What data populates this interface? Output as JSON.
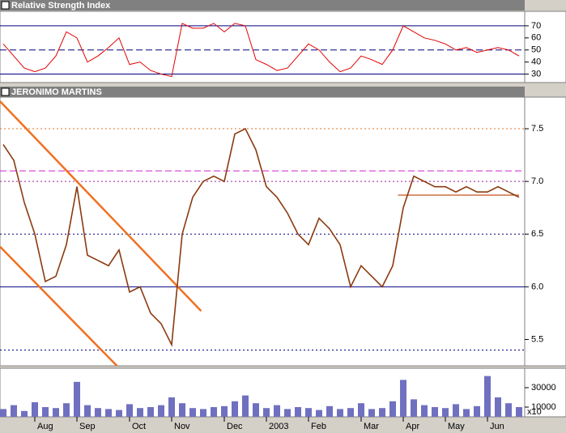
{
  "chart_data": [
    {
      "type": "line",
      "title": "Relative Strength Index",
      "color": "#e00000",
      "values": [
        55,
        45,
        35,
        32,
        35,
        45,
        65,
        60,
        40,
        45,
        52,
        60,
        38,
        40,
        33,
        30,
        28,
        72,
        68,
        68,
        72,
        65,
        72,
        70,
        42,
        38,
        33,
        35,
        45,
        55,
        50,
        40,
        32,
        35,
        45,
        42,
        38,
        50,
        70,
        65,
        60,
        58,
        55,
        50,
        52,
        48,
        50,
        52,
        50,
        45
      ],
      "ylim": [
        23,
        82
      ],
      "yticks": [
        30,
        40,
        50,
        60,
        70
      ],
      "reference_lines": [
        {
          "value": 70,
          "style": "solid",
          "color": "#000080"
        },
        {
          "value": 50,
          "style": "dashed",
          "color": "#000080"
        },
        {
          "value": 30,
          "style": "solid",
          "color": "#000080"
        }
      ]
    },
    {
      "type": "line",
      "title": "JERONIMO MARTINS",
      "color": "#8b3a0f",
      "values": [
        7.35,
        7.2,
        6.8,
        6.5,
        6.05,
        6.1,
        6.4,
        6.95,
        6.3,
        6.25,
        6.2,
        6.35,
        5.95,
        6.0,
        5.75,
        5.65,
        5.45,
        6.5,
        6.85,
        7.0,
        7.05,
        7.0,
        7.45,
        7.5,
        7.3,
        6.95,
        6.85,
        6.7,
        6.5,
        6.4,
        6.65,
        6.55,
        6.4,
        6.0,
        6.2,
        6.1,
        6.0,
        6.2,
        6.75,
        7.05,
        7.0,
        6.95,
        6.95,
        6.9,
        6.95,
        6.9,
        6.9,
        6.95,
        6.9,
        6.85
      ],
      "ylim": [
        5.25,
        7.8
      ],
      "yticks": [
        5.5,
        {
          "value": 6,
          "label": "6.0"
        },
        6.5,
        {
          "value": 7,
          "label": "7.0"
        },
        7.5
      ],
      "reference_lines": [
        {
          "value": 7.5,
          "style": "dotted",
          "color": "#e07020"
        },
        {
          "value": 7.1,
          "style": "dashed",
          "color": "#d020d0"
        },
        {
          "value": 7,
          "style": "dotted",
          "color": "#a020a0"
        },
        {
          "value": 6.5,
          "style": "dotted",
          "color": "#000080"
        },
        {
          "value": 6,
          "style": "solid",
          "color": "#000080"
        },
        {
          "value": 5.4,
          "style": "dotted",
          "color": "#000080"
        }
      ],
      "trendlines": [
        {
          "color": "#f07020",
          "points": [
            [
              -0.3,
              7.76
            ],
            [
              18.8,
              5.77
            ]
          ]
        },
        {
          "color": "#f07020",
          "points": [
            [
              -0.3,
              6.38
            ],
            [
              10.8,
              5.25
            ]
          ]
        },
        {
          "color": "#c04000",
          "points": [
            [
              37.5,
              6.87
            ],
            [
              49,
              6.87
            ]
          ]
        }
      ]
    },
    {
      "type": "bar",
      "color": "#7070c0",
      "unit": "x10",
      "values": [
        8000,
        12000,
        6000,
        15000,
        10000,
        9000,
        14000,
        36000,
        12000,
        9000,
        8000,
        7000,
        13000,
        9000,
        10000,
        12000,
        20000,
        14000,
        9000,
        8000,
        10000,
        11000,
        16000,
        22000,
        14000,
        9000,
        12000,
        8000,
        10000,
        9000,
        7000,
        11000,
        8000,
        9000,
        14000,
        8000,
        9000,
        16000,
        38000,
        18000,
        12000,
        10000,
        9000,
        13000,
        8000,
        11000,
        42000,
        20000,
        14000,
        10000
      ],
      "categories": [
        null,
        null,
        null,
        "Aug",
        null,
        null,
        null,
        "Sep",
        null,
        null,
        null,
        null,
        "Oct",
        null,
        null,
        null,
        "Nov",
        null,
        null,
        null,
        null,
        "Dec",
        null,
        null,
        null,
        "2003",
        null,
        null,
        null,
        "Feb",
        null,
        null,
        null,
        null,
        "Mar",
        null,
        null,
        null,
        "Apr",
        null,
        null,
        null,
        "May",
        null,
        null,
        null,
        "Jun",
        null,
        null,
        null
      ],
      "ylim": [
        0,
        50000
      ],
      "yticks": [
        10000,
        30000
      ]
    }
  ]
}
